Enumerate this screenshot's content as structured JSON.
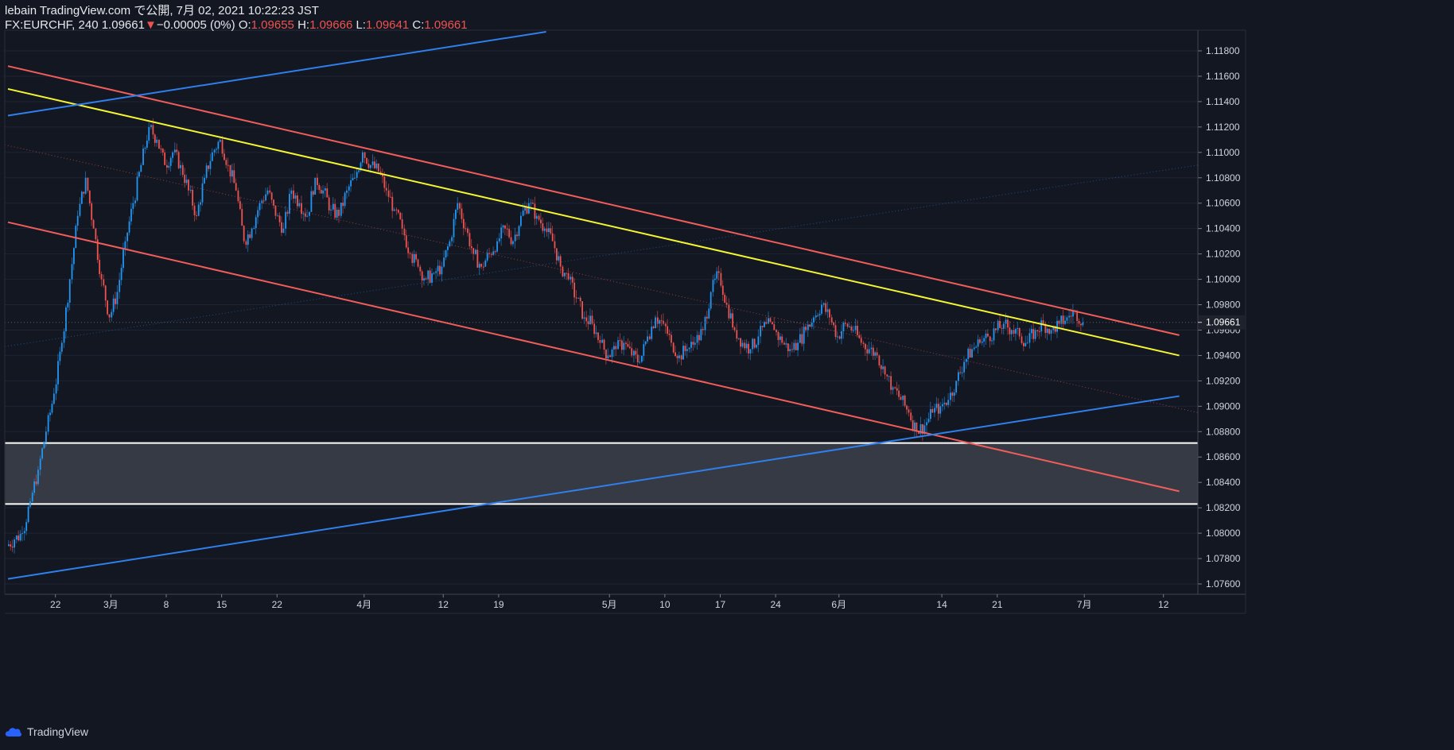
{
  "header": {
    "line1": "lebain TradingView.com で公開, 7月 02, 2021 10:22:23 JST",
    "symbol": "FX:EURCHF, 240",
    "last": "1.09661",
    "arrow": "▼",
    "change": "−0.00005 (0%)",
    "o_label": "O:",
    "o": "1.09655",
    "h_label": "H:",
    "h": "1.09666",
    "l_label": "L:",
    "l": "1.09641",
    "c_label": "C:",
    "c": "1.09661"
  },
  "footer": {
    "brand": "TradingView"
  },
  "colors": {
    "background": "#131722",
    "up": "#2196f3",
    "down": "#ef5350",
    "channel": "#f05d5a",
    "trend_yellow": "#f5f531",
    "trend_blue": "#2f80ed",
    "zone_fill": "#363a45",
    "zone_line": "#ffffff"
  },
  "chart_data": {
    "type": "candlestick",
    "symbol": "FX:EURCHF",
    "interval": "240",
    "y_ticks": [
      "1.11800",
      "1.11600",
      "1.11400",
      "1.11200",
      "1.11000",
      "1.10800",
      "1.10600",
      "1.10400",
      "1.10200",
      "1.10000",
      "1.09800",
      "1.09600",
      "1.09400",
      "1.09200",
      "1.09000",
      "1.08800",
      "1.08600",
      "1.08400",
      "1.08200",
      "1.08000",
      "1.07800",
      "1.07600"
    ],
    "ylim": [
      1.0752,
      1.1195
    ],
    "x_ticks": [
      {
        "label": "22",
        "i": 6
      },
      {
        "label": "3月",
        "i": 13
      },
      {
        "label": "8",
        "i": 20
      },
      {
        "label": "15",
        "i": 27
      },
      {
        "label": "22",
        "i": 34
      },
      {
        "label": "4月",
        "i": 45
      },
      {
        "label": "12",
        "i": 55
      },
      {
        "label": "19",
        "i": 62
      },
      {
        "label": "5月",
        "i": 76
      },
      {
        "label": "10",
        "i": 83
      },
      {
        "label": "17",
        "i": 90
      },
      {
        "label": "24",
        "i": 97
      },
      {
        "label": "6月",
        "i": 105
      },
      {
        "label": "14",
        "i": 118
      },
      {
        "label": "21",
        "i": 125
      },
      {
        "label": "7月",
        "i": 136
      },
      {
        "label": "12",
        "i": 146
      }
    ],
    "last_price_label": "1.09661",
    "last_price": 1.09661,
    "closes": [
      1.0795,
      1.08,
      1.0825,
      1.085,
      1.088,
      1.091,
      1.095,
      1.1,
      1.105,
      1.108,
      1.104,
      1.1,
      1.097,
      1.099,
      1.103,
      1.106,
      1.109,
      1.112,
      1.111,
      1.109,
      1.11,
      1.109,
      1.107,
      1.105,
      1.108,
      1.11,
      1.111,
      1.109,
      1.107,
      1.103,
      1.104,
      1.106,
      1.107,
      1.105,
      1.104,
      1.107,
      1.106,
      1.105,
      1.108,
      1.107,
      1.1055,
      1.105,
      1.107,
      1.108,
      1.11,
      1.109,
      1.1085,
      1.107,
      1.1055,
      1.104,
      1.102,
      1.101,
      1.1,
      1.1005,
      1.101,
      1.103,
      1.106,
      1.104,
      1.102,
      1.101,
      1.102,
      1.103,
      1.104,
      1.103,
      1.105,
      1.106,
      1.105,
      1.104,
      1.103,
      1.101,
      1.1,
      1.0985,
      1.097,
      1.0965,
      1.095,
      1.094,
      1.0945,
      1.095,
      1.094,
      1.0935,
      1.0955,
      1.097,
      1.0965,
      1.095,
      1.094,
      1.0945,
      1.095,
      1.096,
      1.099,
      1.1005,
      1.098,
      1.096,
      1.095,
      1.0945,
      1.0955,
      1.0965,
      1.096,
      1.095,
      1.0945,
      1.095,
      1.096,
      1.097,
      1.098,
      1.097,
      1.0955,
      1.0965,
      1.096,
      1.095,
      1.0945,
      1.094,
      1.0925,
      1.0915,
      1.0905,
      1.0895,
      1.088,
      1.0885,
      1.0895,
      1.09,
      1.0905,
      1.092,
      1.0935,
      1.0945,
      1.095,
      1.0955,
      1.096,
      1.0965,
      1.096,
      1.0955,
      1.095,
      1.096,
      1.0965,
      1.096,
      1.0965,
      1.097,
      1.0975,
      1.09661
    ],
    "drawings": [
      {
        "name": "channel-upper",
        "color": "red",
        "from": [
          0,
          1.1168
        ],
        "to": [
          148,
          1.0956
        ]
      },
      {
        "name": "channel-lower",
        "color": "red",
        "from": [
          0,
          1.1045
        ],
        "to": [
          148,
          1.0833
        ]
      },
      {
        "name": "yellow-trend",
        "color": "yellow",
        "from": [
          0,
          1.115
        ],
        "to": [
          148,
          1.094
        ]
      },
      {
        "name": "blue-trend-lower",
        "color": "blue",
        "from": [
          0,
          1.0764
        ],
        "to": [
          148,
          1.0908
        ]
      },
      {
        "name": "blue-trend-upper",
        "color": "blue",
        "from": [
          0,
          1.1129
        ],
        "to": [
          68,
          1.1195
        ]
      }
    ],
    "zone": {
      "top": 1.0871,
      "bottom": 1.0823
    }
  }
}
